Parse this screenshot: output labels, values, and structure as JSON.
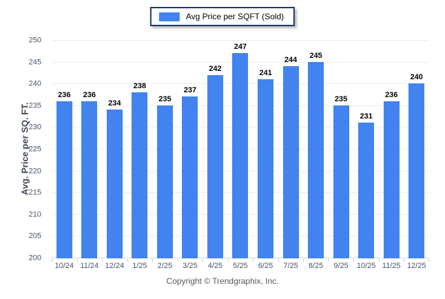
{
  "legend": {
    "label": "Avg Price per SQFT (Sold)"
  },
  "footer": {
    "text": "Copyright © Trendgraphix, Inc."
  },
  "colors": {
    "bar": "#4283F0",
    "legend_border": "#1F3864",
    "gridline": "#ECECEC",
    "axis_line": "#D6D6D6",
    "tick": "#C9C9C9",
    "axis_label": "#44546A",
    "value_label": "#000000",
    "y_title": "#404756",
    "footer_text": "#595959"
  },
  "chart_data": {
    "type": "bar",
    "title": "",
    "series_name": "Avg Price per SQFT (Sold)",
    "categories": [
      "10/24",
      "11/24",
      "12/24",
      "1/25",
      "2/25",
      "3/25",
      "4/25",
      "5/25",
      "6/25",
      "7/25",
      "8/25",
      "9/25",
      "10/25",
      "11/25",
      "12/25"
    ],
    "values": [
      236,
      236,
      234,
      238,
      235,
      237,
      242,
      247,
      241,
      244,
      245,
      235,
      231,
      236,
      240
    ],
    "xlabel": "",
    "ylabel": "Avg. Price per SQ. FT.",
    "ylim": [
      200,
      250
    ],
    "ytick_step": 5,
    "grid": "horizontal",
    "legend_position": "top-center",
    "value_labels": "above-bars"
  }
}
